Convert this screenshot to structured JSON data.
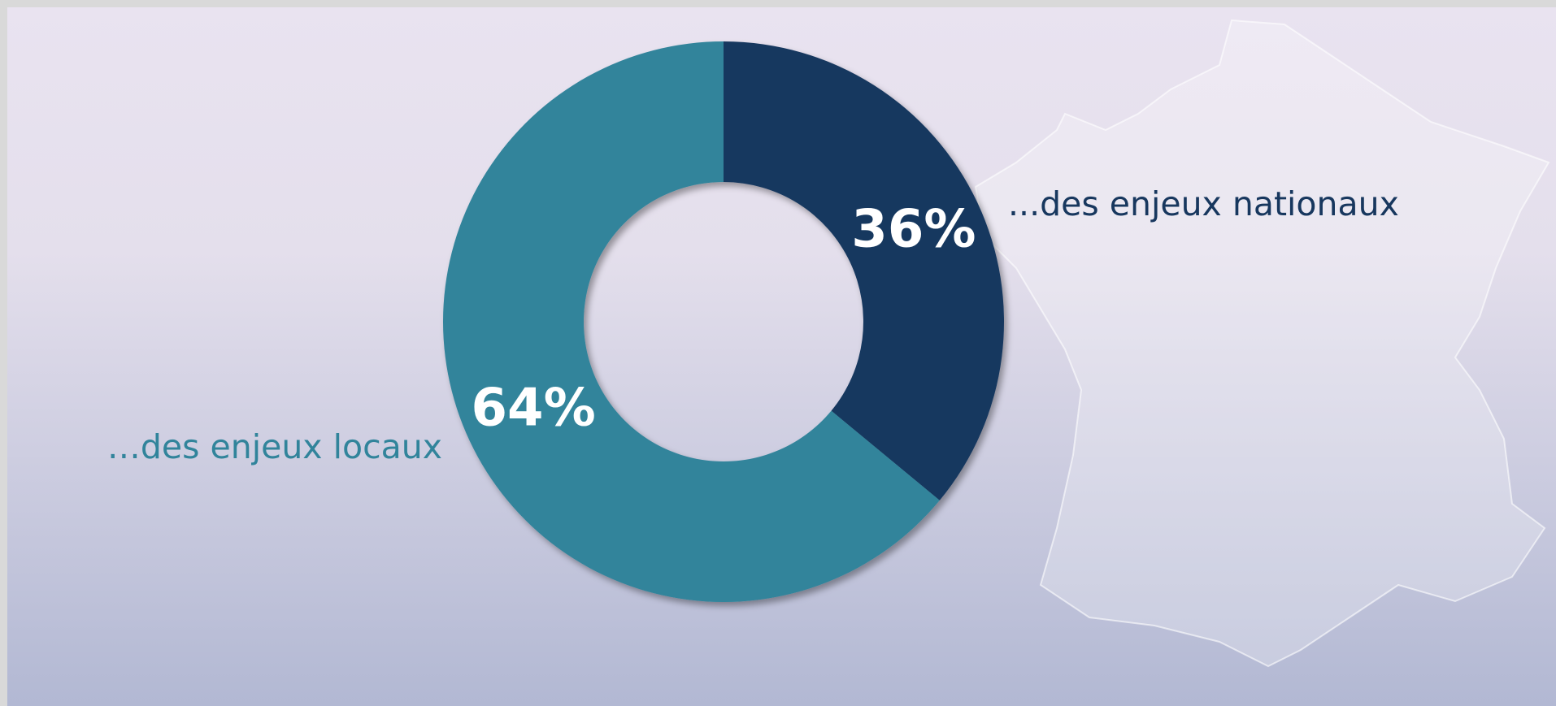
{
  "chart_data": {
    "type": "pie",
    "donut": true,
    "categories": [
      "...des enjeux nationaux",
      "…des enjeux locaux"
    ],
    "values": [
      36,
      64
    ],
    "value_labels": [
      "36%",
      "64%"
    ],
    "colors": [
      "#17375e",
      "#31849b"
    ]
  }
}
